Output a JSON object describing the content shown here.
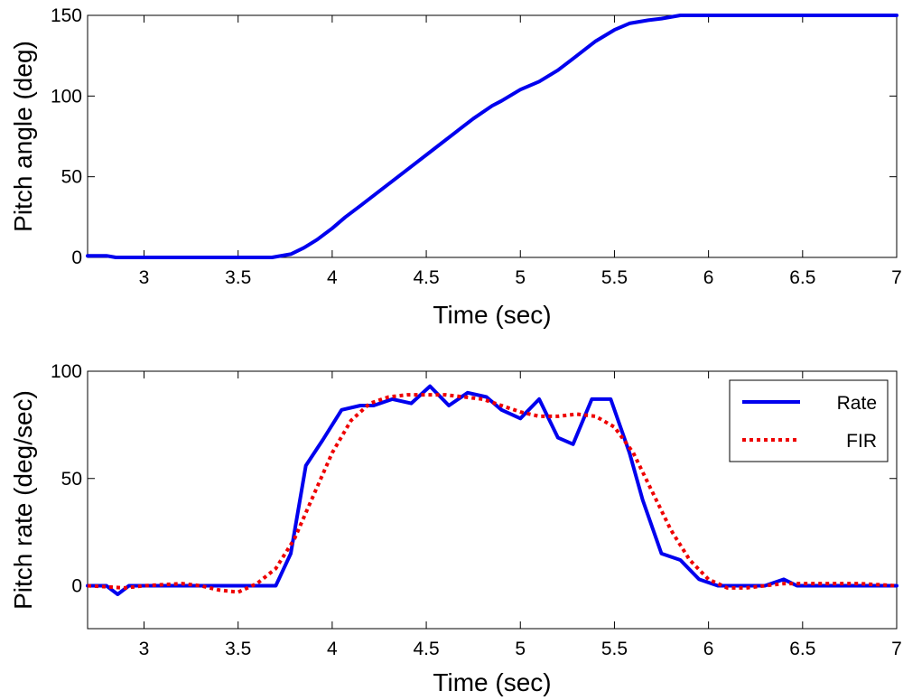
{
  "colors": {
    "rate": "#0000ee",
    "fir": "#ee0000",
    "axis": "#000000"
  },
  "chart_data": [
    {
      "type": "line",
      "title": "",
      "xlabel": "Time (sec)",
      "ylabel": "Pitch angle (deg)",
      "xlim": [
        2.7,
        7
      ],
      "ylim": [
        0,
        150
      ],
      "xticks": [
        3,
        3.5,
        4,
        4.5,
        5,
        5.5,
        6,
        6.5,
        7
      ],
      "yticks": [
        0,
        50,
        100,
        150
      ],
      "grid": false,
      "series": [
        {
          "color": "#0000ee",
          "style": "solid",
          "x": [
            2.7,
            2.8,
            2.85,
            3.0,
            3.5,
            3.68,
            3.78,
            3.85,
            3.92,
            4.0,
            4.07,
            4.15,
            4.25,
            4.35,
            4.45,
            4.55,
            4.65,
            4.75,
            4.85,
            4.9,
            5.0,
            5.1,
            5.2,
            5.3,
            5.4,
            5.5,
            5.58,
            5.68,
            5.75,
            5.85,
            6.0,
            6.5,
            7.0
          ],
          "y": [
            1,
            1,
            0,
            0,
            0,
            0,
            2,
            6,
            11,
            18,
            25,
            32,
            41,
            50,
            59,
            68,
            77,
            86,
            94,
            97,
            104,
            109,
            116,
            125,
            134,
            141,
            145,
            147,
            148,
            150,
            150,
            150,
            150
          ]
        }
      ]
    },
    {
      "type": "line",
      "title": "",
      "xlabel": "Time (sec)",
      "ylabel": "Pitch rate (deg/sec)",
      "xlim": [
        2.7,
        7
      ],
      "ylim": [
        -20,
        100
      ],
      "xticks": [
        3,
        3.5,
        4,
        4.5,
        5,
        5.5,
        6,
        6.5,
        7
      ],
      "yticks": [
        0,
        50,
        100
      ],
      "grid": false,
      "legend_position": "top-right",
      "series": [
        {
          "name": "Rate",
          "color": "#0000ee",
          "style": "solid",
          "x": [
            2.7,
            2.8,
            2.86,
            2.92,
            3.0,
            3.5,
            3.65,
            3.7,
            3.78,
            3.86,
            3.95,
            4.05,
            4.15,
            4.22,
            4.32,
            4.42,
            4.52,
            4.62,
            4.72,
            4.82,
            4.9,
            5.0,
            5.1,
            5.2,
            5.28,
            5.38,
            5.48,
            5.58,
            5.65,
            5.75,
            5.85,
            5.95,
            6.05,
            6.3,
            6.4,
            6.47,
            6.5,
            7.0
          ],
          "y": [
            0,
            0,
            -4,
            0,
            0,
            0,
            0,
            0,
            15,
            56,
            68,
            82,
            84,
            84,
            87,
            85,
            93,
            84,
            90,
            88,
            82,
            78,
            87,
            69,
            66,
            87,
            87,
            62,
            40,
            15,
            12,
            3,
            0,
            0,
            3,
            0,
            0,
            0
          ]
        },
        {
          "name": "FIR",
          "color": "#ee0000",
          "style": "dotted",
          "x": [
            2.7,
            2.9,
            3.0,
            3.2,
            3.3,
            3.4,
            3.5,
            3.6,
            3.7,
            3.8,
            3.9,
            4.0,
            4.1,
            4.2,
            4.3,
            4.4,
            4.5,
            4.6,
            4.7,
            4.8,
            4.9,
            5.0,
            5.1,
            5.2,
            5.3,
            5.4,
            5.5,
            5.6,
            5.7,
            5.8,
            5.9,
            6.0,
            6.1,
            6.2,
            6.3,
            6.4,
            6.5,
            6.8,
            7.0
          ],
          "y": [
            0,
            -1,
            0,
            1,
            0,
            -2,
            -3,
            1,
            8,
            22,
            42,
            62,
            77,
            85,
            88,
            89,
            89,
            89,
            88,
            87,
            84,
            81,
            79,
            79,
            80,
            79,
            74,
            62,
            44,
            26,
            12,
            3,
            -1,
            -1,
            0,
            1,
            1,
            1,
            0
          ]
        }
      ]
    }
  ]
}
